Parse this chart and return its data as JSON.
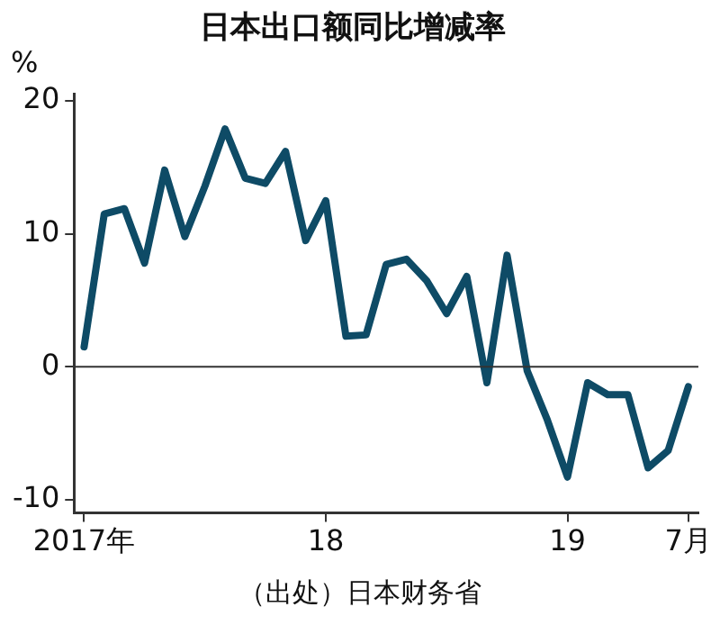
{
  "chart_data": {
    "type": "line",
    "title": "日本出口额同比增减率",
    "ylabel": "%",
    "categories": [
      "2017年",
      null,
      null,
      null,
      null,
      null,
      null,
      null,
      null,
      null,
      null,
      null,
      "18",
      null,
      null,
      null,
      null,
      null,
      null,
      null,
      null,
      null,
      null,
      null,
      "19",
      null,
      null,
      null,
      null,
      null,
      "7月"
    ],
    "series": [
      {
        "color": "#0e4b66",
        "values": [
          1.5,
          11.5,
          11.9,
          7.8,
          14.8,
          9.8,
          13.6,
          17.9,
          14.2,
          13.8,
          16.2,
          9.5,
          12.5,
          2.3,
          2.4,
          7.7,
          8.1,
          6.5,
          4.0,
          6.8,
          -1.2,
          8.4,
          -0.3,
          -4.0,
          -8.3,
          -1.2,
          -2.1,
          -2.1,
          -7.6,
          -6.3,
          -1.5
        ]
      }
    ],
    "ylim": [
      -11,
      20.5
    ],
    "yticks": [
      -10,
      0,
      10,
      20
    ],
    "grid": false,
    "legend": false,
    "marker": "none",
    "line_style": "solid",
    "ref_lines": [
      {
        "axis": "y",
        "value": 0,
        "color": "#333333"
      }
    ],
    "annotations": [
      "（出处）日本财务省"
    ]
  }
}
